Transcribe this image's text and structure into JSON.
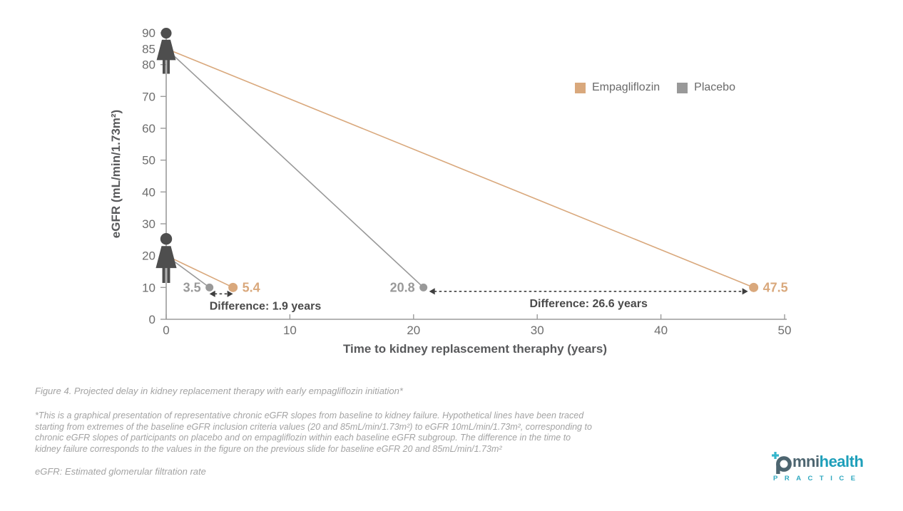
{
  "figure": {
    "caption": "Figure 4. Projected delay in kidney replacement therapy with early empagliflozin initiation*",
    "footnote_lines": [
      "*This is a graphical presentation of representative chronic eGFR slopes from baseline to kidney failure. Hypothetical lines have been traced",
      "starting from extremes of the baseline eGFR inclusion criteria values (20 and 85mL/min/1.73m²) to eGFR 10mL/min/1.73m², corresponding to",
      "chronic eGFR slopes of participants on placebo and on empagliflozin within each baseline eGFR subgroup. The difference in the time to",
      "kidney failure corresponds to the values in the figure on the previous slide for baseline eGFR 20 and 85mL/min/1.73m²"
    ],
    "abbreviation": "eGFR: Estimated glomerular filtration rate"
  },
  "logo": {
    "word_mid": "mni",
    "word_end": "health",
    "subtitle": "PRACTICE"
  },
  "chart_data": {
    "type": "line",
    "title": "",
    "xlabel": "Time to kidney replascement theraphy (years)",
    "ylabel": "eGFR (mL/min/1.73m²)",
    "xlim": [
      0,
      50
    ],
    "ylim": [
      0,
      90
    ],
    "xticks": [
      0,
      10,
      20,
      30,
      40,
      50
    ],
    "yticks": [
      0,
      10,
      20,
      30,
      40,
      50,
      60,
      70,
      80,
      85,
      90
    ],
    "grid": false,
    "legend_position": "top-right",
    "colors": {
      "empagliflozin": "#D9A87C",
      "placebo": "#999999",
      "person": "#4E4E4E",
      "axis": "#9B9B9B",
      "tick_label": "#6E6E6E",
      "axis_title": "#58595B",
      "annotation": "#4A4A4A",
      "arrow": "#3E3E3E"
    },
    "legend": {
      "entries": [
        {
          "label": "Empagliflozin",
          "color": "#D9A87C"
        },
        {
          "label": "Placebo",
          "color": "#999999"
        }
      ]
    },
    "series": [
      {
        "name": "Empagliflozin",
        "color": "#D9A87C",
        "dot_radius": 6.5,
        "segments": [
          {
            "from": [
              0,
              85
            ],
            "to": [
              47.5,
              10
            ],
            "end_label": "47.5",
            "label_side": "right"
          },
          {
            "from": [
              0,
              20
            ],
            "to": [
              5.4,
              10
            ],
            "end_label": "5.4",
            "label_side": "right"
          }
        ]
      },
      {
        "name": "Placebo",
        "color": "#999999",
        "dot_radius": 5.5,
        "segments": [
          {
            "from": [
              0,
              85
            ],
            "to": [
              20.8,
              10
            ],
            "end_label": "20.8",
            "label_side": "left"
          },
          {
            "from": [
              0,
              20
            ],
            "to": [
              3.5,
              10
            ],
            "end_label": "3.5",
            "label_side": "left"
          }
        ]
      }
    ],
    "annotations": [
      {
        "label": "Difference: 1.9 years",
        "x1": 3.5,
        "x2": 5.4,
        "y": 10,
        "label_align": "start",
        "inset": 0,
        "dy": 9
      },
      {
        "label": "Difference: 26.6 years",
        "x1": 20.8,
        "x2": 47.5,
        "y": 10,
        "label_align": "middle",
        "inset": 8,
        "dy": 5.5
      }
    ],
    "person_markers": [
      {
        "at": [
          0,
          85
        ],
        "scale": 1.2,
        "dy": 10
      },
      {
        "at": [
          0,
          20
        ],
        "scale": 1.3,
        "dy": 11
      }
    ]
  }
}
